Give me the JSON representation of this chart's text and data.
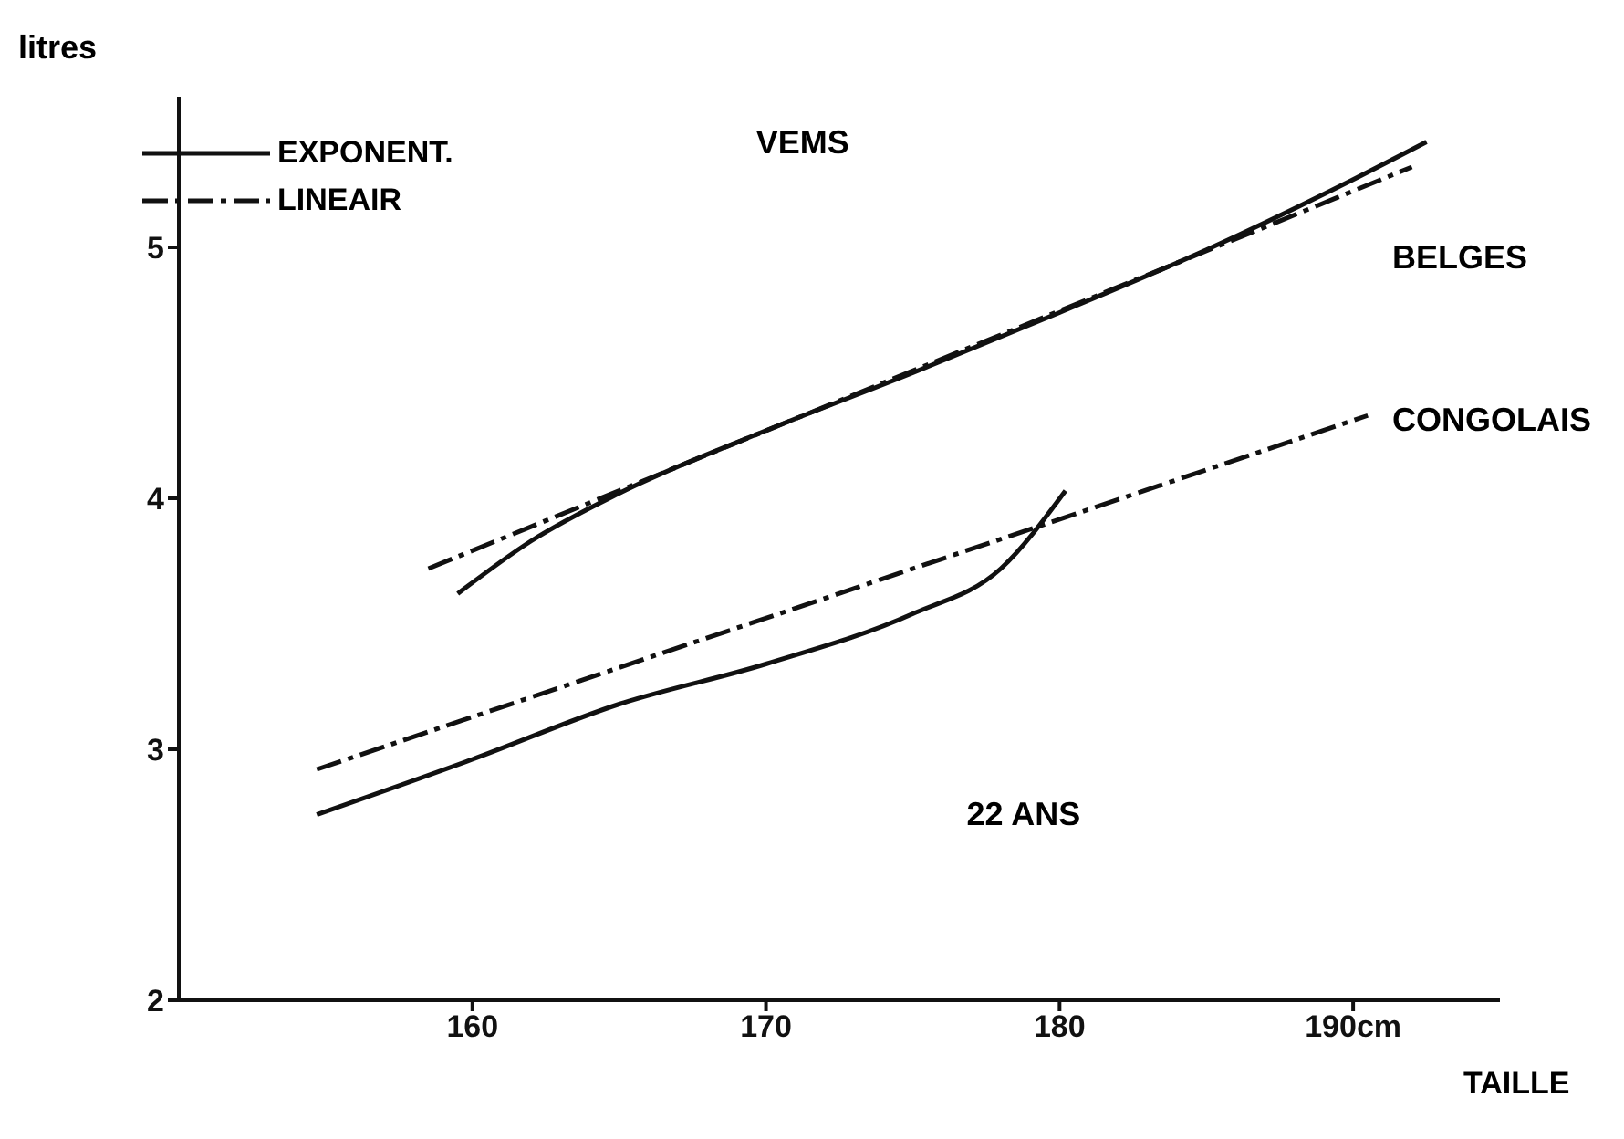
{
  "chart_data": {
    "type": "line",
    "ylabel": "litres",
    "xlabel": "TAILLE",
    "xlim": [
      150,
      195
    ],
    "ylim": [
      2,
      5.6
    ],
    "xticks": [
      160,
      170,
      180,
      {
        "value": 190,
        "label": "190cm"
      }
    ],
    "yticks": [
      2,
      3,
      4,
      5
    ],
    "legend": "top left",
    "marker": "none",
    "series": [
      {
        "name": "EXPONENT.",
        "color": "#111111",
        "line_style": "solid",
        "x": [
          159.5,
          162,
          165,
          170,
          175,
          180,
          185,
          190,
          192.5
        ],
        "values": [
          3.62,
          3.83,
          4.02,
          4.27,
          4.5,
          4.74,
          4.99,
          5.27,
          5.42
        ]
      },
      {
        "name": "LINEAIR",
        "color": "#111111",
        "line_style": "dashed",
        "x": [
          158.5,
          192
        ],
        "values": [
          3.72,
          5.32
        ]
      },
      {
        "color": "#111111",
        "line_style": "solid",
        "x": [
          154.7,
          160,
          165,
          170,
          175,
          178,
          180.2
        ],
        "values": [
          2.74,
          2.96,
          3.18,
          3.34,
          3.54,
          3.72,
          4.03
        ]
      },
      {
        "color": "#111111",
        "line_style": "dashed",
        "x": [
          154.7,
          190.5
        ],
        "values": [
          2.92,
          4.33
        ]
      }
    ],
    "annotations": [
      "VEMS",
      "BELGES",
      "CONGOLAIS",
      "22 ANS"
    ]
  }
}
